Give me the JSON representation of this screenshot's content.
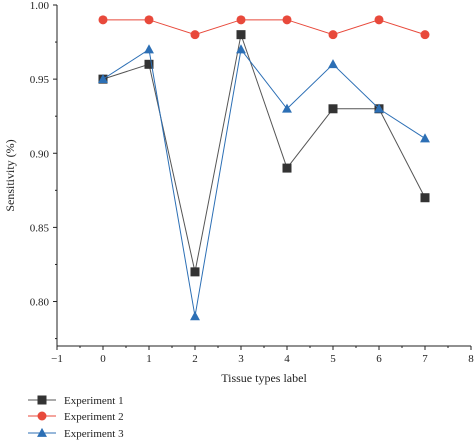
{
  "chart_data": {
    "type": "line",
    "xlabel": "Tissue types label",
    "ylabel": "Sensitivity (%)",
    "xlim": [
      -1,
      8
    ],
    "ylim": [
      0.77,
      1.0
    ],
    "xticks": [
      -1,
      0,
      1,
      2,
      3,
      4,
      5,
      6,
      7,
      8
    ],
    "xtick_labels": [
      "−1",
      "0",
      "1",
      "2",
      "3",
      "4",
      "5",
      "6",
      "7",
      "8"
    ],
    "yticks": [
      0.8,
      0.85,
      0.9,
      0.95,
      1.0
    ],
    "ytick_labels": [
      "0.80",
      "0.85",
      "0.90",
      "0.95",
      "1.00"
    ],
    "grid": false,
    "legend_position": "bottom-left",
    "x": [
      0,
      1,
      2,
      3,
      4,
      5,
      6,
      7
    ],
    "series": [
      {
        "name": "Experiment 1",
        "marker": "square",
        "color": "#333333",
        "line_color": "#555555",
        "values": [
          0.95,
          0.96,
          0.82,
          0.98,
          0.89,
          0.93,
          0.93,
          0.87
        ]
      },
      {
        "name": "Experiment 2",
        "marker": "circle",
        "color": "#e8493b",
        "line_color": "#e8493b",
        "values": [
          0.99,
          0.99,
          0.98,
          0.99,
          0.99,
          0.98,
          0.99,
          0.98
        ]
      },
      {
        "name": "Experiment 3",
        "marker": "triangle",
        "color": "#2c6fb5",
        "line_color": "#2c6fb5",
        "values": [
          0.95,
          0.97,
          0.79,
          0.97,
          0.93,
          0.96,
          0.93,
          0.91
        ]
      }
    ]
  }
}
